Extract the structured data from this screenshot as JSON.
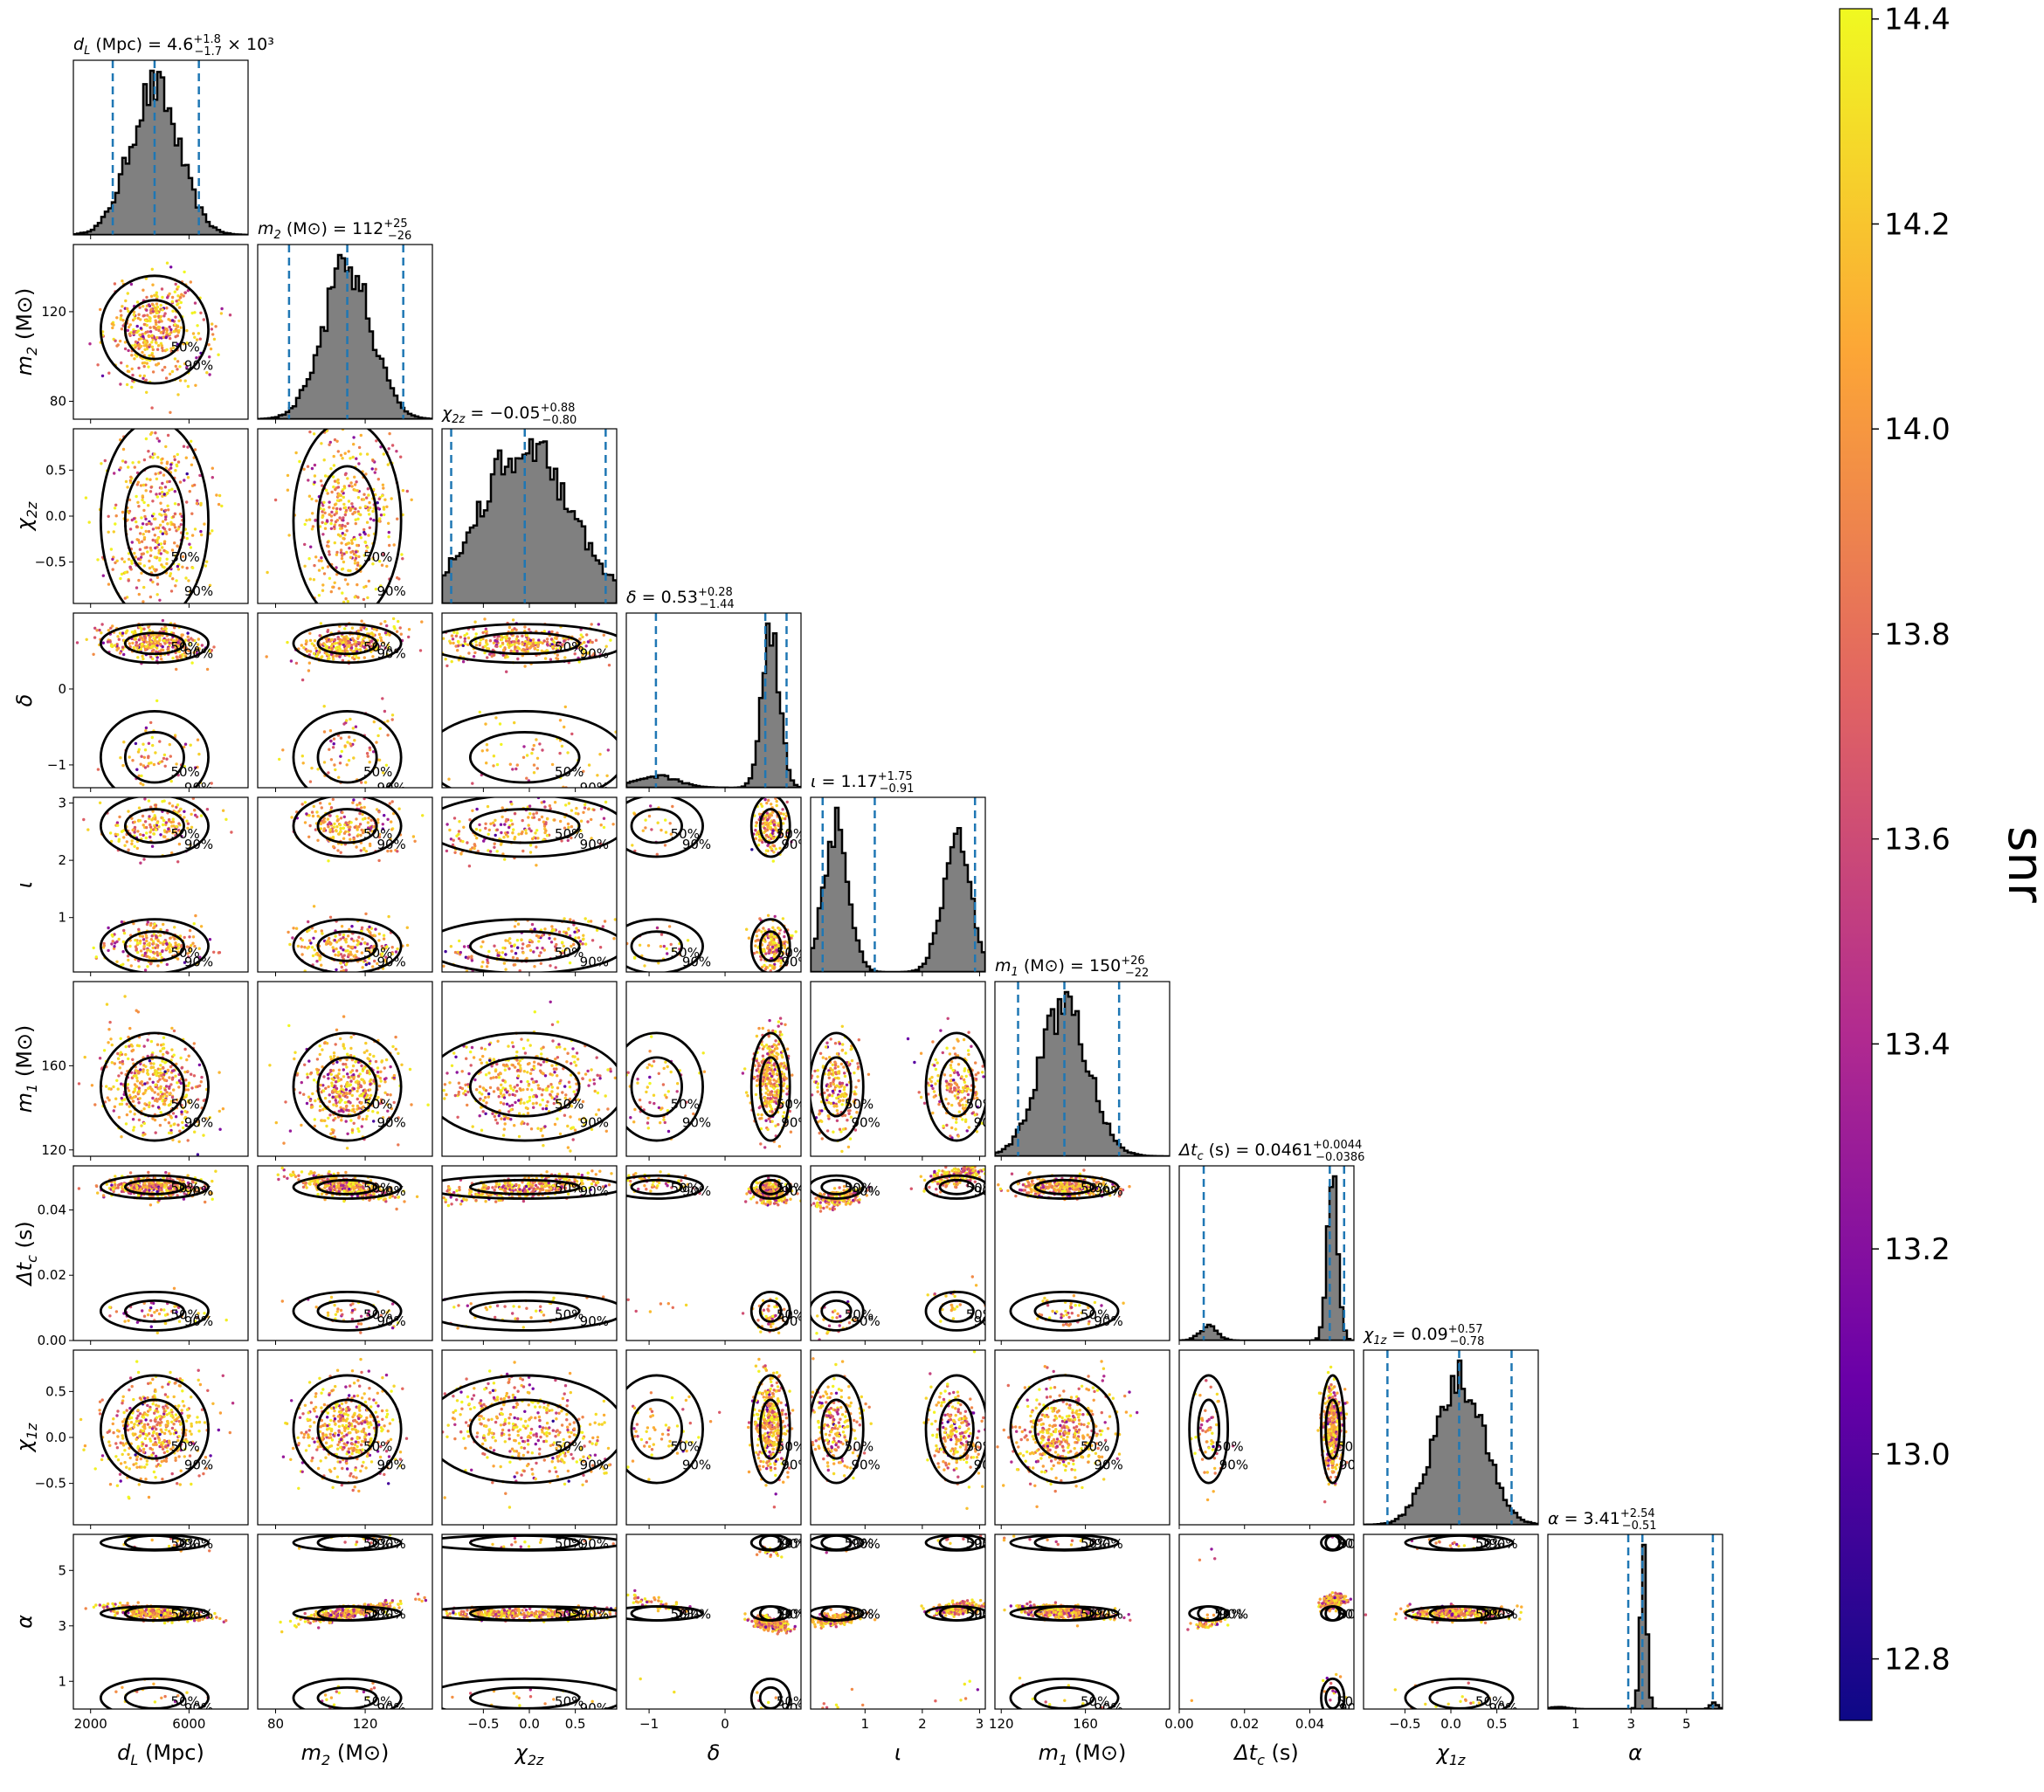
{
  "chart_data": {
    "type": "scatter",
    "subtype": "corner-plot",
    "legend": "none",
    "grid": false,
    "colormap": [
      "#0d0887",
      "#6a00a8",
      "#b12a90",
      "#e16462",
      "#fca636",
      "#f0f921"
    ],
    "colorbar": {
      "label": "snr",
      "range": [
        12.74,
        14.41
      ],
      "ticks": [
        "12.8",
        "13.0",
        "13.2",
        "13.4",
        "13.6",
        "13.8",
        "14.0",
        "14.2",
        "14.4"
      ]
    },
    "median_line_color": "#1f77b4",
    "contour_levels": [
      "50%",
      "90%"
    ],
    "parameters": [
      {
        "key": "dL",
        "label": "d_L (Mpc)",
        "title": "= 4.6",
        "title_sup": "+1.8",
        "title_sub": "−1.7",
        "title_suffix": "× 10³",
        "median": 4600,
        "lo": 2900,
        "hi": 6400,
        "range": [
          1300,
          8400
        ],
        "ticks": [
          2000,
          6000
        ],
        "tick_labels": [
          "2000",
          "6000"
        ],
        "hist": "unimodal"
      },
      {
        "key": "m2",
        "label": "m_2 (M⊙)",
        "title": "= 112",
        "title_sup": "+25",
        "title_sub": "−26",
        "title_suffix": "",
        "median": 112,
        "lo": 86,
        "hi": 137,
        "range": [
          72,
          150
        ],
        "ticks": [
          80,
          120
        ],
        "tick_labels": [
          "80",
          "120"
        ],
        "hist": "unimodal"
      },
      {
        "key": "chi2z",
        "label": "χ_2z",
        "title": "= −0.05",
        "title_sup": "+0.88",
        "title_sub": "−0.80",
        "title_suffix": "",
        "median": -0.05,
        "lo": -0.85,
        "hi": 0.83,
        "range": [
          -0.95,
          0.95
        ],
        "ticks": [
          -0.5,
          0,
          0.5
        ],
        "tick_labels": [
          "−0.5",
          "0.0",
          "0.5"
        ],
        "hist": "broad"
      },
      {
        "key": "delta",
        "label": "δ",
        "title": "= 0.53",
        "title_sup": "+0.28",
        "title_sub": "−1.44",
        "title_suffix": "",
        "median": 0.53,
        "lo": -0.91,
        "hi": 0.81,
        "range": [
          -1.3,
          1.0
        ],
        "ticks": [
          -1,
          0
        ],
        "tick_labels": [
          "−1",
          "0"
        ],
        "hist": "peak-high"
      },
      {
        "key": "iota",
        "label": "ι",
        "title": "= 1.17",
        "title_sup": "+1.75",
        "title_sub": "−0.91",
        "title_suffix": "",
        "median": 1.17,
        "lo": 0.26,
        "hi": 2.92,
        "range": [
          0.05,
          3.1
        ],
        "ticks": [
          1,
          2,
          3
        ],
        "tick_labels": [
          "1",
          "2",
          "3"
        ],
        "hist": "bimodal"
      },
      {
        "key": "m1",
        "label": "m_1 (M⊙)",
        "title": "= 150",
        "title_sup": "+26",
        "title_sub": "−22",
        "title_suffix": "",
        "median": 150,
        "lo": 128,
        "hi": 176,
        "range": [
          117,
          200
        ],
        "ticks": [
          120,
          160
        ],
        "tick_labels": [
          "120",
          "160"
        ],
        "hist": "unimodal"
      },
      {
        "key": "dtc",
        "label": "Δt_c (s)",
        "title": "= 0.0461",
        "title_sup": "+0.0044",
        "title_sub": "−0.0386",
        "title_suffix": "",
        "median": 0.0461,
        "lo": 0.0075,
        "hi": 0.0505,
        "range": [
          0.0,
          0.0535
        ],
        "ticks": [
          0,
          0.02,
          0.04
        ],
        "tick_labels": [
          "0.00",
          "0.02",
          "0.04"
        ],
        "hist": "peak-high"
      },
      {
        "key": "chi1z",
        "label": "χ_1z",
        "title": "= 0.09",
        "title_sup": "+0.57",
        "title_sub": "−0.78",
        "title_suffix": "",
        "median": 0.09,
        "lo": -0.69,
        "hi": 0.66,
        "range": [
          -0.95,
          0.95
        ],
        "ticks": [
          -0.5,
          0,
          0.5
        ],
        "tick_labels": [
          "−0.5",
          "0.0",
          "0.5"
        ],
        "hist": "unimodal"
      },
      {
        "key": "alpha",
        "label": "α",
        "title": "= 3.41",
        "title_sup": "+2.54",
        "title_sub": "−0.51",
        "title_suffix": "",
        "median": 3.41,
        "lo": 2.9,
        "hi": 5.95,
        "range": [
          0.0,
          6.3
        ],
        "ticks": [
          1,
          3,
          5
        ],
        "tick_labels": [
          "1",
          "3",
          "5"
        ],
        "hist": "spike"
      }
    ]
  }
}
